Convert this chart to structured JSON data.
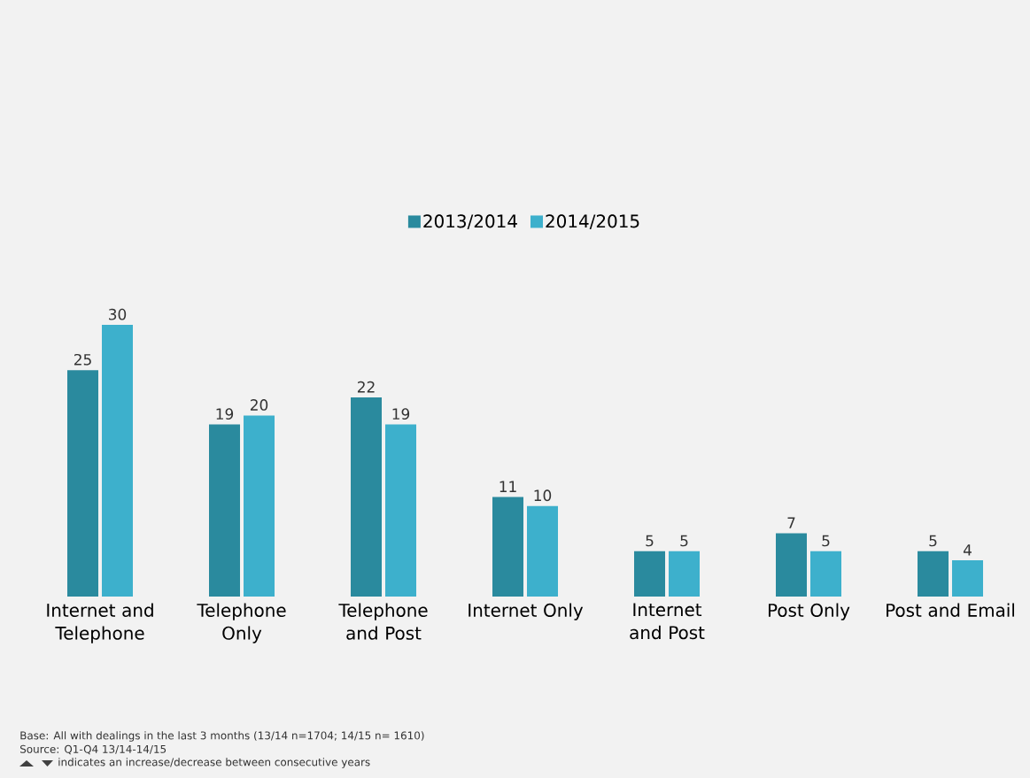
{
  "chart_data": {
    "type": "bar",
    "categories": [
      "Internet and Telephone",
      "Telephone Only",
      "Telephone and Post",
      "Internet Only",
      "Internet and Post",
      "Post Only",
      "Post and Email"
    ],
    "series": [
      {
        "name": "2013/2014",
        "color": "#2a8a9e",
        "values": [
          25,
          19,
          22,
          11,
          5,
          7,
          5
        ]
      },
      {
        "name": "2014/2015",
        "color": "#3db0cc",
        "values": [
          30,
          20,
          19,
          10,
          5,
          5,
          4
        ]
      }
    ],
    "data_labels": true,
    "legend": "top",
    "annotations": [
      "Base: All with dealings in the last 3 months (13/14 n=1704; 14/15 n= 1610)",
      "Source: Q1-Q4 13/14-14/15",
      "indicates an increase/decrease between consecutive years"
    ]
  }
}
